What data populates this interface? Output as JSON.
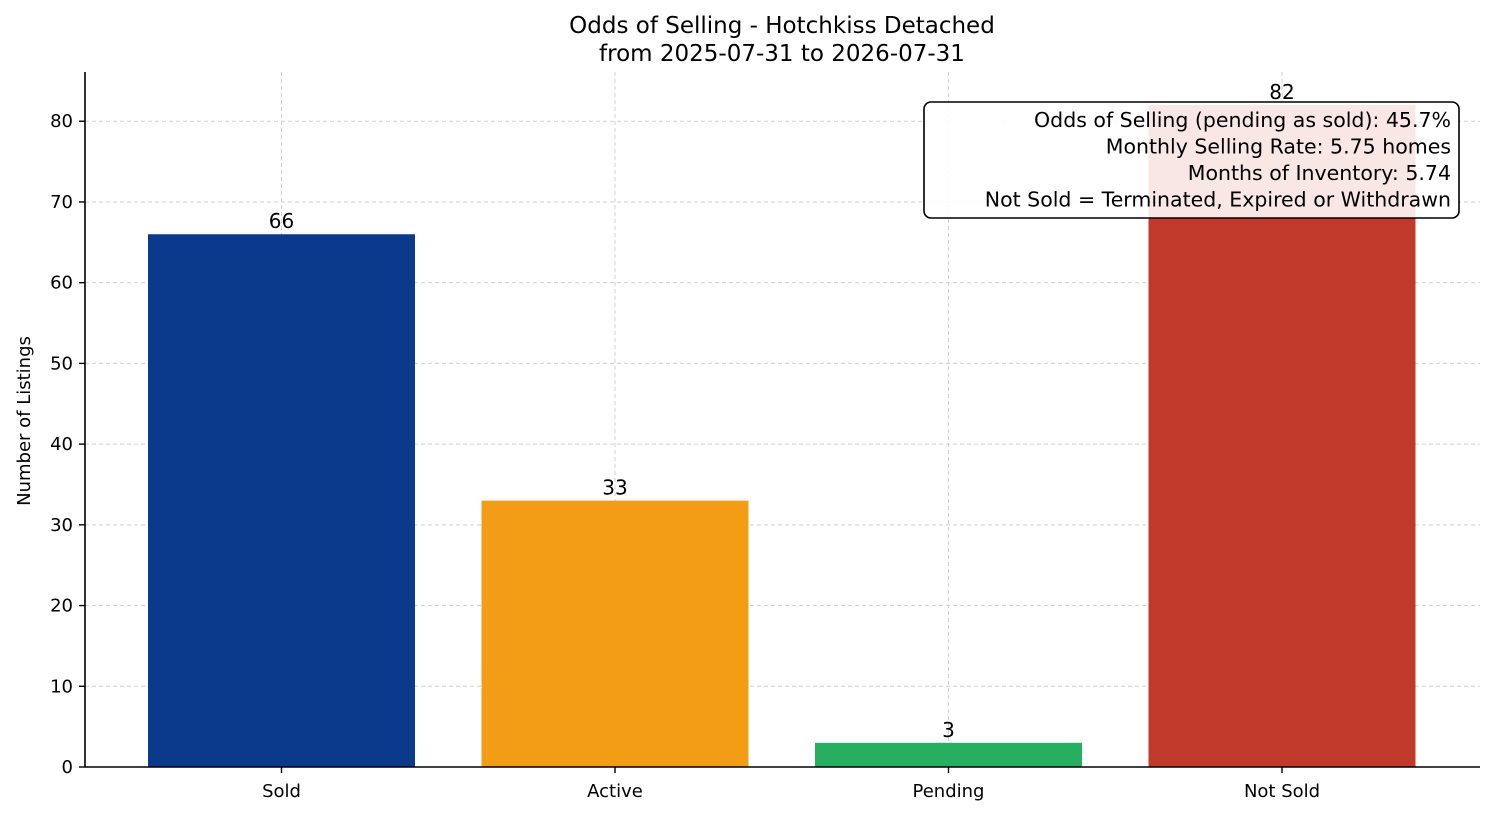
{
  "chart_data": {
    "type": "bar",
    "title": "Odds of Selling - Hotchkiss Detached",
    "subtitle": "from 2025-07-31 to 2026-07-31",
    "xlabel": "",
    "ylabel": "Number of Listings",
    "categories": [
      "Sold",
      "Active",
      "Pending",
      "Not Sold"
    ],
    "values": [
      66,
      33,
      3,
      82
    ],
    "colors": [
      "#0b3a8c",
      "#f39c16",
      "#27ae60",
      "#c0392b"
    ],
    "ylim": [
      0,
      86.1
    ],
    "yticks": [
      0,
      10,
      20,
      30,
      40,
      50,
      60,
      70,
      80
    ],
    "grid": true,
    "annotation": {
      "placement": "top-right",
      "lines": [
        "Odds of Selling (pending as sold): 45.7%",
        "Monthly Selling Rate: 5.75 homes",
        "Months of Inventory: 5.74",
        "Not Sold = Terminated, Expired or Withdrawn"
      ]
    }
  }
}
